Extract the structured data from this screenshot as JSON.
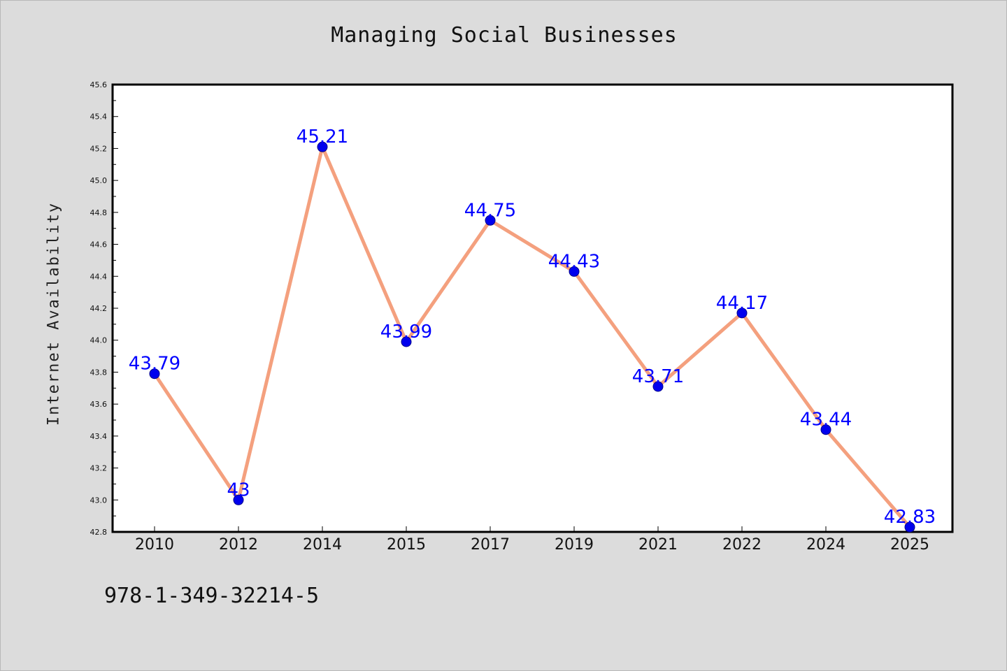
{
  "chart_data": {
    "type": "line",
    "title": "Managing Social Businesses",
    "xlabel": "",
    "ylabel": "Internet Availability",
    "categories": [
      "2010",
      "2012",
      "2014",
      "2015",
      "2017",
      "2019",
      "2021",
      "2022",
      "2024",
      "2025"
    ],
    "series": [
      {
        "values": [
          43.79,
          43.0,
          45.21,
          43.99,
          44.75,
          44.43,
          43.71,
          44.17,
          43.44,
          42.83
        ],
        "labels": [
          "43.79",
          "43",
          "45.21",
          "43.99",
          "44.75",
          "44.43",
          "43.71",
          "44.17",
          "43.44",
          "42.83"
        ]
      }
    ],
    "ylim": [
      42.8,
      45.6
    ],
    "yticks": [
      "42.8",
      "43.0",
      "43.2",
      "43.4",
      "43.6",
      "43.8",
      "44.0",
      "44.2",
      "44.4",
      "44.6",
      "44.8",
      "45.0",
      "45.2",
      "45.4",
      "45.6"
    ],
    "grid": false,
    "line_color": "#f4a07e",
    "marker_color": "#0000ee",
    "label_color": "#0000ff",
    "background": "#dcdcdc",
    "plot_background": "#ffffff"
  },
  "footer": {
    "isbn": "978-1-349-32214-5"
  }
}
